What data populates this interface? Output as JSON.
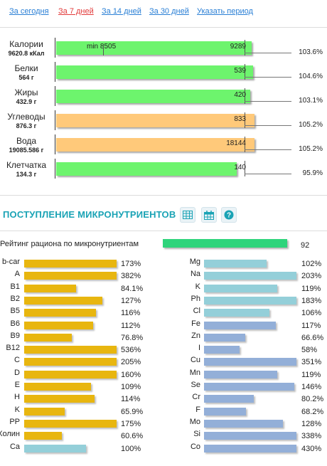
{
  "period_links": [
    {
      "label": "За сегодня",
      "color": "#2a7fd5"
    },
    {
      "label": "За 7 дней",
      "color": "#e23b3b"
    },
    {
      "label": "За 14 дней",
      "color": "#2a7fd5"
    },
    {
      "label": "За 30 дней",
      "color": "#2a7fd5"
    },
    {
      "label": "Указать период",
      "color": "#2a7fd5"
    }
  ],
  "macros": [
    {
      "name": "Калории",
      "value": "9620.8 кКал",
      "norm": "9289",
      "min_label": "min 8505",
      "percent": "103.6%",
      "percent_num": 103.6,
      "color": "green"
    },
    {
      "name": "Белки",
      "value": "564 г",
      "norm": "539",
      "min_label": "",
      "percent": "104.6%",
      "percent_num": 104.6,
      "color": "green"
    },
    {
      "name": "Жиры",
      "value": "432.9 г",
      "norm": "420",
      "min_label": "",
      "percent": "103.1%",
      "percent_num": 103.1,
      "color": "green"
    },
    {
      "name": "Углеводы",
      "value": "876.3 г",
      "norm": "833",
      "min_label": "",
      "percent": "105.2%",
      "percent_num": 105.2,
      "color": "orange"
    },
    {
      "name": "Вода",
      "value": "19085.586 г",
      "norm": "18144",
      "min_label": "",
      "percent": "105.2%",
      "percent_num": 105.2,
      "color": "orange"
    },
    {
      "name": "Клетчатка",
      "value": "134.3 г",
      "norm": "140",
      "min_label": "",
      "percent": "95.9%",
      "percent_num": 95.9,
      "color": "green"
    }
  ],
  "micro_section": {
    "title": "ПОСТУПЛЕНИЕ МИКРОНУТРИЕНТОВ",
    "icons": [
      "table-icon",
      "calendar-icon",
      "help-icon"
    ]
  },
  "rating": {
    "label": "Рейтинг рациона по микронутриентам",
    "value": "92",
    "value_num": 92
  },
  "vitamins": [
    {
      "name": "b-car",
      "percent": "173%",
      "value": 173,
      "color": "gold"
    },
    {
      "name": "A",
      "percent": "382%",
      "value": 382,
      "color": "gold"
    },
    {
      "name": "B1",
      "percent": "84.1%",
      "value": 84.1,
      "color": "gold"
    },
    {
      "name": "B2",
      "percent": "127%",
      "value": 127,
      "color": "gold"
    },
    {
      "name": "B5",
      "percent": "116%",
      "value": 116,
      "color": "gold"
    },
    {
      "name": "B6",
      "percent": "112%",
      "value": 112,
      "color": "gold"
    },
    {
      "name": "B9",
      "percent": "76.8%",
      "value": 76.8,
      "color": "gold"
    },
    {
      "name": "B12",
      "percent": "536%",
      "value": 536,
      "color": "gold"
    },
    {
      "name": "C",
      "percent": "205%",
      "value": 205,
      "color": "gold"
    },
    {
      "name": "D",
      "percent": "160%",
      "value": 160,
      "color": "gold"
    },
    {
      "name": "E",
      "percent": "109%",
      "value": 109,
      "color": "gold"
    },
    {
      "name": "H",
      "percent": "114%",
      "value": 114,
      "color": "gold"
    },
    {
      "name": "K",
      "percent": "65.9%",
      "value": 65.9,
      "color": "gold"
    },
    {
      "name": "PP",
      "percent": "175%",
      "value": 175,
      "color": "gold"
    },
    {
      "name": "Холин",
      "percent": "60.6%",
      "value": 60.6,
      "color": "gold"
    },
    {
      "name": "Ca",
      "percent": "100%",
      "value": 100,
      "color": "cyan"
    }
  ],
  "minerals": [
    {
      "name": "Mg",
      "percent": "102%",
      "value": 102,
      "color": "cyan"
    },
    {
      "name": "Na",
      "percent": "203%",
      "value": 203,
      "color": "cyan"
    },
    {
      "name": "K",
      "percent": "119%",
      "value": 119,
      "color": "cyan"
    },
    {
      "name": "Ph",
      "percent": "183%",
      "value": 183,
      "color": "cyan"
    },
    {
      "name": "Cl",
      "percent": "106%",
      "value": 106,
      "color": "cyan"
    },
    {
      "name": "Fe",
      "percent": "117%",
      "value": 117,
      "color": "steel"
    },
    {
      "name": "Zn",
      "percent": "66.6%",
      "value": 66.6,
      "color": "steel"
    },
    {
      "name": "I",
      "percent": "58%",
      "value": 58,
      "color": "steel"
    },
    {
      "name": "Cu",
      "percent": "351%",
      "value": 351,
      "color": "steel"
    },
    {
      "name": "Mn",
      "percent": "119%",
      "value": 119,
      "color": "steel"
    },
    {
      "name": "Se",
      "percent": "146%",
      "value": 146,
      "color": "steel"
    },
    {
      "name": "Cr",
      "percent": "80.2%",
      "value": 80.2,
      "color": "steel"
    },
    {
      "name": "F",
      "percent": "68.2%",
      "value": 68.2,
      "color": "steel"
    },
    {
      "name": "Mo",
      "percent": "128%",
      "value": 128,
      "color": "steel"
    },
    {
      "name": "Si",
      "percent": "338%",
      "value": 338,
      "color": "steel"
    },
    {
      "name": "Co",
      "percent": "430%",
      "value": 430,
      "color": "steel"
    }
  ]
}
